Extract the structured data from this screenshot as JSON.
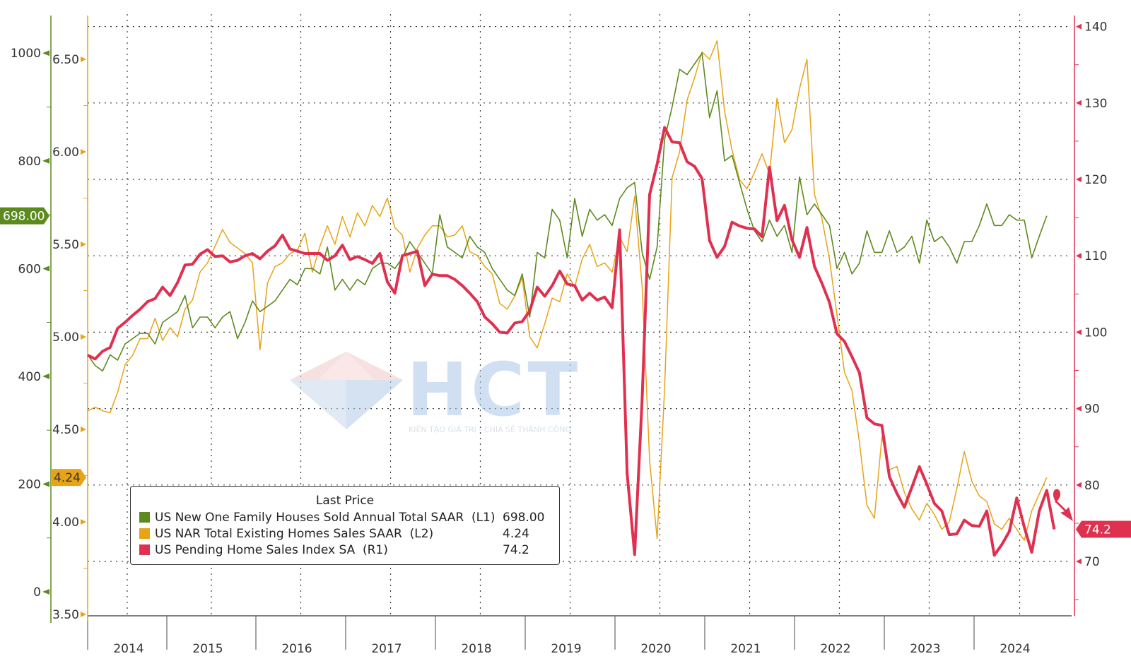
{
  "chart_data": {
    "type": "line",
    "x_range": [
      "2014-01",
      "2024-12"
    ],
    "years": [
      "2014",
      "2015",
      "2016",
      "2017",
      "2018",
      "2019",
      "2020",
      "2021",
      "2022",
      "2023",
      "2024"
    ],
    "axes": {
      "L1": {
        "color": "#5c8a1e",
        "ticks": [
          "1000",
          "800",
          "600",
          "400",
          "200",
          "0"
        ],
        "ylim": [
          0,
          1150
        ],
        "last_value": "698.00"
      },
      "L2": {
        "color": "#e8a317",
        "ticks": [
          "6.50",
          "6.00",
          "5.50",
          "5.00",
          "4.50",
          "4.00",
          "3.50"
        ],
        "ylim": [
          3.5,
          6.7
        ],
        "last_value": "4.24"
      },
      "R1": {
        "color": "#e03050",
        "ticks": [
          "140",
          "130",
          "120",
          "110",
          "100",
          "90",
          "80",
          "70"
        ],
        "ylim": [
          65,
          140
        ],
        "last_value": "74.2"
      }
    },
    "series": [
      {
        "name": "US New One Family Houses Sold Annual Total SAAR",
        "axis": "L1",
        "color": "#5c8a1e",
        "values": [
          440,
          420,
          410,
          440,
          430,
          460,
          470,
          480,
          480,
          460,
          500,
          510,
          520,
          550,
          490,
          510,
          510,
          490,
          510,
          520,
          470,
          500,
          540,
          520,
          530,
          540,
          560,
          580,
          570,
          600,
          600,
          590,
          640,
          560,
          580,
          560,
          580,
          570,
          600,
          610,
          610,
          600,
          620,
          650,
          630,
          610,
          590,
          700,
          640,
          630,
          620,
          660,
          640,
          630,
          600,
          580,
          560,
          550,
          590,
          510,
          630,
          620,
          710,
          690,
          620,
          730,
          660,
          710,
          690,
          700,
          680,
          730,
          750,
          760,
          630,
          580,
          640,
          840,
          900,
          970,
          960,
          980,
          1000,
          880,
          930,
          800,
          810,
          760,
          710,
          670,
          650,
          690,
          660,
          680,
          630,
          770,
          700,
          720,
          700,
          680,
          600,
          630,
          590,
          610,
          670,
          630,
          630,
          670,
          630,
          640,
          660,
          610,
          690,
          650,
          660,
          640,
          610,
          650,
          650,
          680,
          720,
          680,
          680,
          700,
          690,
          690,
          620,
          660,
          698
        ]
      },
      {
        "name": "US NAR Total Existing Homes Sales SAAR",
        "axis": "L2",
        "color": "#e8a317",
        "values": [
          4.6,
          4.62,
          4.6,
          4.59,
          4.7,
          4.85,
          4.9,
          4.99,
          4.99,
          5.1,
          4.98,
          5.05,
          5.0,
          5.15,
          5.2,
          5.35,
          5.4,
          5.49,
          5.58,
          5.51,
          5.48,
          5.45,
          5.4,
          4.93,
          5.29,
          5.38,
          5.4,
          5.45,
          5.47,
          5.56,
          5.35,
          5.49,
          5.6,
          5.5,
          5.65,
          5.54,
          5.67,
          5.6,
          5.71,
          5.65,
          5.75,
          5.59,
          5.55,
          5.35,
          5.48,
          5.55,
          5.6,
          5.6,
          5.54,
          5.55,
          5.6,
          5.46,
          5.44,
          5.38,
          5.34,
          5.18,
          5.15,
          5.22,
          5.32,
          5.0,
          4.94,
          5.07,
          5.21,
          5.19,
          5.34,
          5.27,
          5.42,
          5.5,
          5.38,
          5.4,
          5.35,
          5.54,
          5.46,
          5.76,
          5.27,
          4.33,
          3.91,
          4.72,
          5.86,
          6.0,
          6.28,
          6.4,
          6.54,
          6.5,
          6.6,
          6.22,
          6.01,
          5.85,
          5.8,
          5.89,
          5.99,
          5.88,
          6.29,
          6.05,
          6.12,
          6.34,
          6.5,
          5.77,
          5.64,
          5.42,
          5.12,
          4.81,
          4.71,
          4.43,
          4.09,
          4.02,
          4.46,
          4.28,
          4.3,
          4.16,
          4.07,
          4.01,
          4.1,
          4.04,
          3.96,
          4.0,
          4.18,
          4.38,
          4.22,
          4.14,
          4.11,
          3.99,
          3.96,
          4.02,
          3.96,
          3.9,
          4.06,
          4.15,
          4.24
        ]
      },
      {
        "name": "US Pending Home Sales Index SA",
        "axis": "R1",
        "color": "#e03050",
        "values": [
          97.0,
          96.5,
          97.5,
          98.0,
          100.5,
          101.3,
          102.2,
          103.0,
          104.0,
          104.4,
          105.9,
          104.8,
          106.5,
          108.8,
          108.9,
          110.2,
          110.8,
          109.9,
          110.0,
          109.2,
          109.4,
          110.0,
          110.3,
          109.6,
          110.6,
          111.3,
          112.7,
          110.9,
          110.6,
          110.3,
          110.3,
          110.3,
          109.4,
          110.0,
          111.4,
          109.5,
          109.9,
          109.5,
          109.0,
          110.3,
          106.6,
          105.1,
          110.0,
          110.3,
          110.6,
          106.1,
          107.6,
          107.4,
          107.4,
          106.9,
          106.1,
          105.1,
          104.0,
          102.0,
          101.1,
          100.0,
          99.9,
          101.2,
          101.4,
          102.8,
          105.9,
          104.7,
          106.1,
          108.0,
          106.3,
          106.1,
          104.2,
          105.1,
          104.2,
          104.6,
          103.2,
          113.4,
          81.5,
          70.9,
          91.2,
          118.0,
          122.0,
          126.8,
          124.9,
          124.8,
          122.3,
          121.7,
          120.1,
          112.0,
          109.8,
          111.2,
          114.4,
          113.9,
          113.6,
          113.5,
          112.5,
          121.6,
          114.6,
          116.6,
          112.1,
          109.8,
          113.7,
          108.6,
          106.4,
          103.9,
          99.8,
          98.8,
          96.8,
          94.7,
          88.8,
          88.0,
          87.8,
          81.1,
          78.9,
          77.1,
          79.7,
          82.4,
          80.1,
          77.6,
          76.6,
          73.5,
          73.6,
          75.4,
          74.7,
          74.6,
          76.6,
          70.8,
          72.2,
          73.9,
          78.3,
          74.5,
          71.2,
          76.6,
          79.3,
          74.2
        ]
      }
    ],
    "legend": {
      "title": "Last Price",
      "placement": "bottom-left",
      "rows": [
        {
          "label": "US New One Family Houses Sold Annual Total SAAR  (L1)",
          "value": "698.00",
          "color": "#5c8a1e"
        },
        {
          "label": "US NAR Total Existing Homes Sales SAAR  (L2)",
          "value": "4.24",
          "color": "#e8a317"
        },
        {
          "label": "US Pending Home Sales Index SA  (R1)",
          "value": "74.2",
          "color": "#e03050"
        }
      ]
    },
    "grid": true
  },
  "watermark": {
    "logo_text": "HCT",
    "tagline": "KIẾN TẠO GIÁ TRỊ - CHIA SẺ THÀNH CÔNG"
  }
}
